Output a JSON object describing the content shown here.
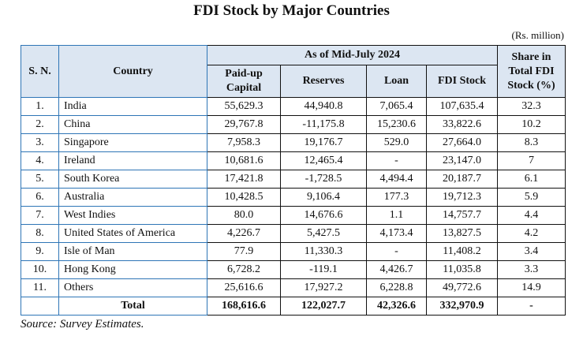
{
  "title": "FDI Stock by Major Countries",
  "unit_note": "(Rs. million)",
  "header": {
    "sn": "S. N.",
    "country": "Country",
    "group": "As of Mid-July 2024",
    "paidup": "Paid-up Capital",
    "reserves": "Reserves",
    "loan": "Loan",
    "fdi_stock": "FDI Stock",
    "share": "Share in Total FDI Stock (%)"
  },
  "header_colors": {
    "background": "#dce6f2",
    "left_border": "#2e75b6"
  },
  "rows": [
    {
      "sn": "1.",
      "country": "India",
      "paidup": "55,629.3",
      "reserves": "44,940.8",
      "loan": "7,065.4",
      "fdi": "107,635.4",
      "share": "32.3"
    },
    {
      "sn": "2.",
      "country": "China",
      "paidup": "29,767.8",
      "reserves": "-11,175.8",
      "loan": "15,230.6",
      "fdi": "33,822.6",
      "share": "10.2"
    },
    {
      "sn": "3.",
      "country": "Singapore",
      "paidup": "7,958.3",
      "reserves": "19,176.7",
      "loan": "529.0",
      "fdi": "27,664.0",
      "share": "8.3"
    },
    {
      "sn": "4.",
      "country": "Ireland",
      "paidup": "10,681.6",
      "reserves": "12,465.4",
      "loan": "-",
      "fdi": "23,147.0",
      "share": "7"
    },
    {
      "sn": "5.",
      "country": "South Korea",
      "paidup": "17,421.8",
      "reserves": "-1,728.5",
      "loan": "4,494.4",
      "fdi": "20,187.7",
      "share": "6.1"
    },
    {
      "sn": "6.",
      "country": "Australia",
      "paidup": "10,428.5",
      "reserves": "9,106.4",
      "loan": "177.3",
      "fdi": "19,712.3",
      "share": "5.9"
    },
    {
      "sn": "7.",
      "country": "West Indies",
      "paidup": "80.0",
      "reserves": "14,676.6",
      "loan": "1.1",
      "fdi": "14,757.7",
      "share": "4.4"
    },
    {
      "sn": "8.",
      "country": "United States of America",
      "paidup": "4,226.7",
      "reserves": "5,427.5",
      "loan": "4,173.4",
      "fdi": "13,827.5",
      "share": "4.2"
    },
    {
      "sn": "9.",
      "country": "Isle of Man",
      "paidup": "77.9",
      "reserves": "11,330.3",
      "loan": "-",
      "fdi": "11,408.2",
      "share": "3.4"
    },
    {
      "sn": "10.",
      "country": "Hong Kong",
      "paidup": "6,728.2",
      "reserves": "-119.1",
      "loan": "4,426.7",
      "fdi": "11,035.8",
      "share": "3.3"
    },
    {
      "sn": "11.",
      "country": "Others",
      "paidup": "25,616.6",
      "reserves": "17,927.2",
      "loan": "6,228.8",
      "fdi": "49,772.6",
      "share": "14.9"
    }
  ],
  "total": {
    "label": "Total",
    "paidup": "168,616.6",
    "reserves": "122,027.7",
    "loan": "42,326.6",
    "fdi": "332,970.9",
    "share": "-"
  },
  "source": "Source: Survey Estimates."
}
